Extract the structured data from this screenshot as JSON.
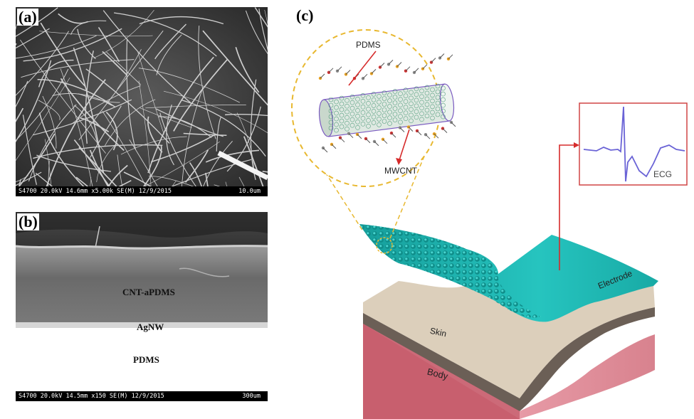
{
  "panels": {
    "a": {
      "label": "(a)",
      "info": "S4700 20.0kV 14.6mm x5.00k SE(M) 12/9/2015",
      "scale": "10.0um"
    },
    "b": {
      "label": "(b)",
      "layers": [
        "CNT-aPDMS",
        "AgNW",
        "PDMS"
      ],
      "info": "S4700 20.0kV 14.5mm x150 SE(M) 12/9/2015",
      "scale": "300um"
    },
    "c": {
      "label": "(c)",
      "callouts": {
        "polymer": "PDMS",
        "nanotube": "MWCNT"
      },
      "ecg_label": "ECG",
      "layers": {
        "electrode": "Electrode",
        "skin": "Skin",
        "body": "Body"
      }
    }
  },
  "colors": {
    "electrode": "#1fb8b4",
    "skin": "#d9cbb6",
    "body": "#cf707e",
    "arrow": "#d62b2b",
    "ecg_trace": "#6a63d6",
    "dashed_circle": "#e8b830"
  }
}
